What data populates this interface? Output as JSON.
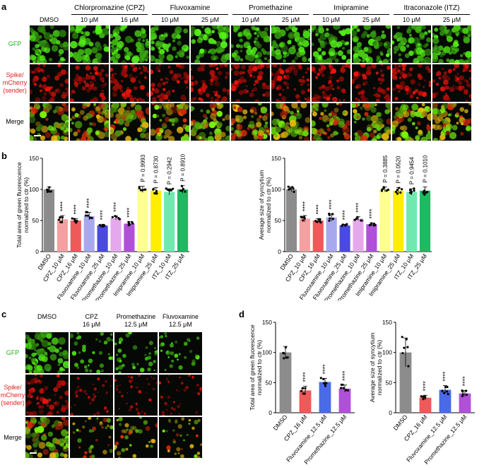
{
  "labels": {
    "a": "a",
    "b": "b",
    "c": "c",
    "d": "d"
  },
  "panel_a": {
    "columns": [
      "DMSO",
      "10 μM",
      "16 μM",
      "10 μM",
      "25 μM",
      "10 μM",
      "25 μM",
      "10 μM",
      "25 μM",
      "10 μM",
      "25 μM"
    ],
    "groups": [
      {
        "name": "Chlorpromazine (CPZ)",
        "span": [
          1,
          2
        ]
      },
      {
        "name": "Fluvoxamine",
        "span": [
          3,
          4
        ]
      },
      {
        "name": "Promethazine",
        "span": [
          5,
          6
        ]
      },
      {
        "name": "Imipramine",
        "span": [
          7,
          8
        ]
      },
      {
        "name": "Itraconazole (ITZ)",
        "span": [
          9,
          10
        ]
      }
    ],
    "rows": [
      {
        "label": "GFP",
        "color": "#1db31d",
        "kind": "gfp"
      },
      {
        "label": "Spike/\nmCherry\n(sender)",
        "color": "#e02020",
        "kind": "red"
      },
      {
        "label": "Merge",
        "color": "#000000",
        "kind": "merge"
      }
    ]
  },
  "panel_c": {
    "columns": [
      "DMSO",
      "CPZ\n16 μM",
      "Promethazine\n12.5 μM",
      "Fluvoxamine\n12.5 μM"
    ],
    "rows": [
      {
        "label": "GFP",
        "color": "#1db31d",
        "kind": "gfp"
      },
      {
        "label": "Spike/\nmCherry\n(sender)",
        "color": "#e02020",
        "kind": "red"
      },
      {
        "label": "Merge",
        "color": "#000000",
        "kind": "merge"
      }
    ]
  },
  "chart_data": [
    {
      "id": "b_left",
      "type": "bar",
      "ylabel": "Total area of green fluorescence\nnormalized to ctr (%)",
      "ylim": [
        0,
        150
      ],
      "yticks": [
        0,
        50,
        100,
        150
      ],
      "categories": [
        "DMSO",
        "CPZ_10 μM",
        "CPZ_16 μM",
        "Fluvoxamine_10 μM",
        "Fluvoxamine_25 μM",
        "Promethazine_10 μM",
        "Promethazine_25 μM",
        "Imipramine_10 μM",
        "Imipramine_25 μM",
        "ITZ_10 μM",
        "ITZ_25 μM"
      ],
      "values": [
        100,
        52,
        50,
        57,
        42,
        54,
        45,
        100,
        98,
        96,
        100
      ],
      "errors": [
        4,
        6,
        3,
        6,
        2,
        3,
        3,
        5,
        5,
        5,
        6
      ],
      "colors": [
        "#8c8c8c",
        "#f4a0a0",
        "#ee5a5a",
        "#a8a8ee",
        "#4a4ae0",
        "#e6a8ec",
        "#b050d8",
        "#ffff90",
        "#ffee00",
        "#70e8b0",
        "#20b860"
      ],
      "significance": [
        "",
        "****",
        "****",
        "****",
        "****",
        "****",
        "****",
        "P = 0.9993",
        "P = 0.8730",
        "P = 0.2942",
        "P = 0.8910"
      ]
    },
    {
      "id": "b_right",
      "type": "bar",
      "ylabel": "Average size of syncytium\nnormalized to ctr (%)",
      "ylim": [
        0,
        150
      ],
      "yticks": [
        0,
        50,
        100,
        150
      ],
      "categories": [
        "DMSO",
        "CPZ_10 μM",
        "CPZ_16 μM",
        "Fluvoxamine_10 μM",
        "Fluvoxamine_25 μM",
        "Promethazine_10 μM",
        "Promethazine_25 μM",
        "Imipramine_10 μM",
        "Imipramine_25 μM",
        "ITZ_10 μM",
        "ITZ_25 μM"
      ],
      "values": [
        100,
        53,
        50,
        55,
        42,
        53,
        44,
        100,
        98,
        96,
        98
      ],
      "errors": [
        4,
        5,
        3,
        6,
        2,
        3,
        2,
        4,
        5,
        5,
        6
      ],
      "colors": [
        "#8c8c8c",
        "#f4a0a0",
        "#ee5a5a",
        "#a8a8ee",
        "#4a4ae0",
        "#e6a8ec",
        "#b050d8",
        "#ffff90",
        "#ffee00",
        "#70e8b0",
        "#20b860"
      ],
      "significance": [
        "",
        "****",
        "****",
        "****",
        "****",
        "****",
        "****",
        "P = 0.3885",
        "P = 0.0520",
        "P = 0.9454",
        "P = 0.1010"
      ]
    },
    {
      "id": "d_left",
      "type": "bar",
      "ylabel": "Total area of green fluorescence\nnormalized to ctr (%)",
      "ylim": [
        0,
        150
      ],
      "yticks": [
        0,
        50,
        100,
        150
      ],
      "categories": [
        "DMSO",
        "CPZ_16 μM",
        "Fluvoxamine_12.5 μM",
        "Promethazine_12.5 μM"
      ],
      "values": [
        100,
        37,
        51,
        40
      ],
      "errors": [
        10,
        7,
        6,
        6
      ],
      "colors": [
        "#8c8c8c",
        "#ee5a5a",
        "#4a6ae8",
        "#b050d8"
      ],
      "significance": [
        "",
        "****",
        "****",
        "****"
      ]
    },
    {
      "id": "d_right",
      "type": "bar",
      "ylabel": "Average size of syncytium\nnormalized to ctr (%)",
      "ylim": [
        0,
        150
      ],
      "yticks": [
        0,
        50,
        100,
        150
      ],
      "categories": [
        "DMSO",
        "CPZ_16 μM",
        "Fluvoxamine_12.5 μM",
        "Promethazine_12.5 μM"
      ],
      "values": [
        100,
        25,
        38,
        32
      ],
      "errors": [
        24,
        4,
        7,
        5
      ],
      "colors": [
        "#8c8c8c",
        "#ee5a5a",
        "#4a6ae8",
        "#b050d8"
      ],
      "significance": [
        "",
        "****",
        "****",
        "****"
      ]
    }
  ]
}
